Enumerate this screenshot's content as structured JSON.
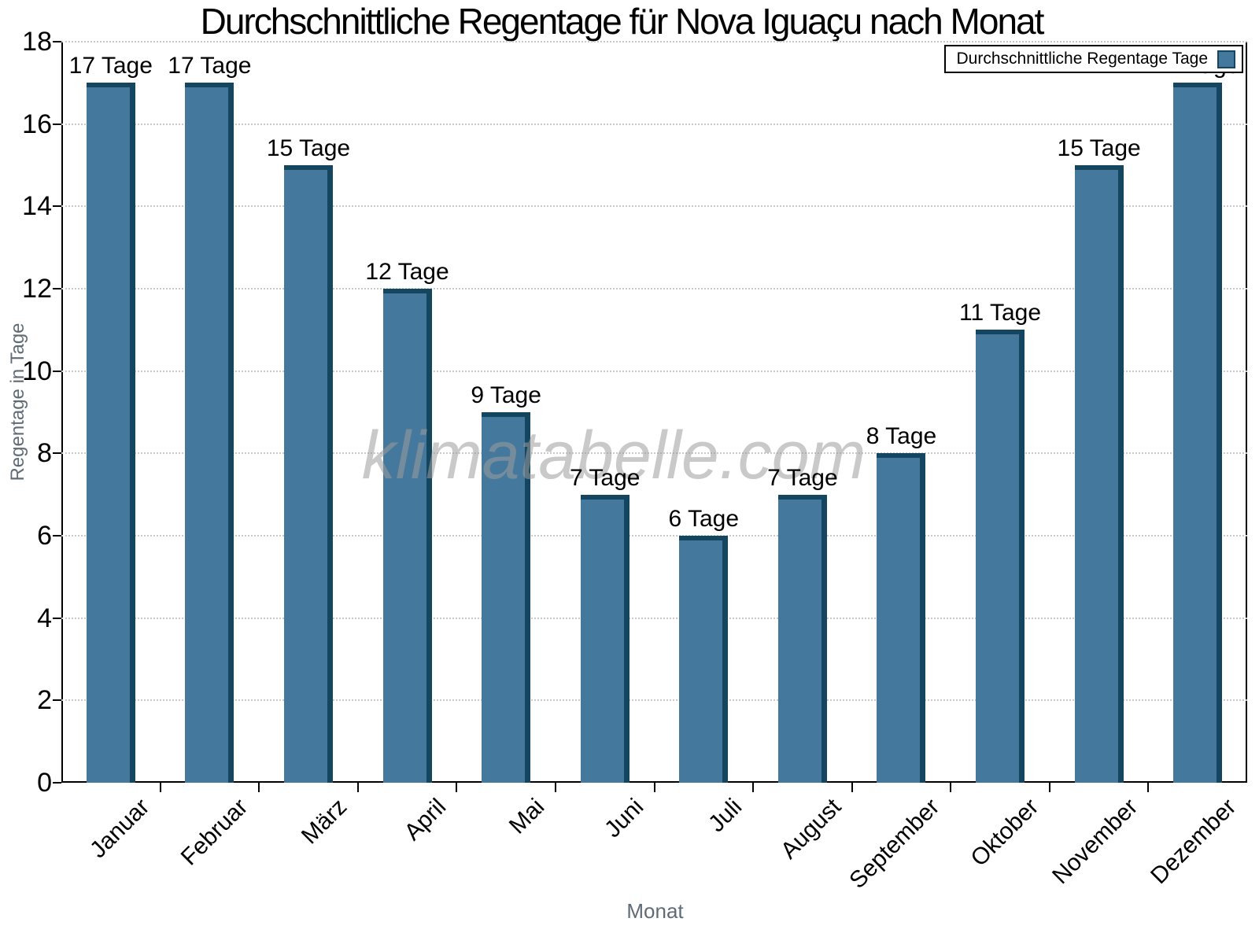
{
  "chart": {
    "title": "Durchschnittliche Regentage für Nova Iguaçu nach Monat",
    "watermark": "klimatabelle.com",
    "legend_label": "Durchschnittliche Regentage Tage",
    "x_axis_title": "Monat",
    "y_axis_title": "Regentage in Tage"
  },
  "colors": {
    "bar_face": "#44789d",
    "bar_edge": "#15465f",
    "gridline": "#c9c9c9",
    "axis_line": "#000000",
    "axis_title_text": "#5f6b76",
    "watermark_text": "#9d9d9d",
    "label_text": "#000000",
    "legend_background": "#ffffff"
  },
  "chart_data": {
    "type": "bar",
    "title": "Durchschnittliche Regentage für Nova Iguaçu nach Monat",
    "categories": [
      "Januar",
      "Februar",
      "März",
      "April",
      "Mai",
      "Juni",
      "Juli",
      "August",
      "September",
      "Oktober",
      "November",
      "Dezember"
    ],
    "values": [
      17,
      17,
      15,
      12,
      9,
      7,
      6,
      7,
      8,
      11,
      15,
      17
    ],
    "value_suffix": " Tage",
    "bar_labels": [
      "17 Tage",
      "17 Tage",
      "15 Tage",
      "12 Tage",
      "9 Tage",
      "7 Tage",
      "6 Tage",
      "7 Tage",
      "8 Tage",
      "11 Tage",
      "15 Tage",
      "17 Tage"
    ],
    "xlabel": "Monat",
    "ylabel": "Regentage in Tage",
    "ylim": [
      0,
      18
    ],
    "yticks": [
      0,
      2,
      4,
      6,
      8,
      10,
      12,
      14,
      16,
      18
    ],
    "grid": "horizontal-dotted",
    "legend": [
      "Durchschnittliche Regentage Tage"
    ],
    "legend_position": "top-right",
    "bar_color": "#44789d",
    "bar_edge_color": "#15465f"
  }
}
